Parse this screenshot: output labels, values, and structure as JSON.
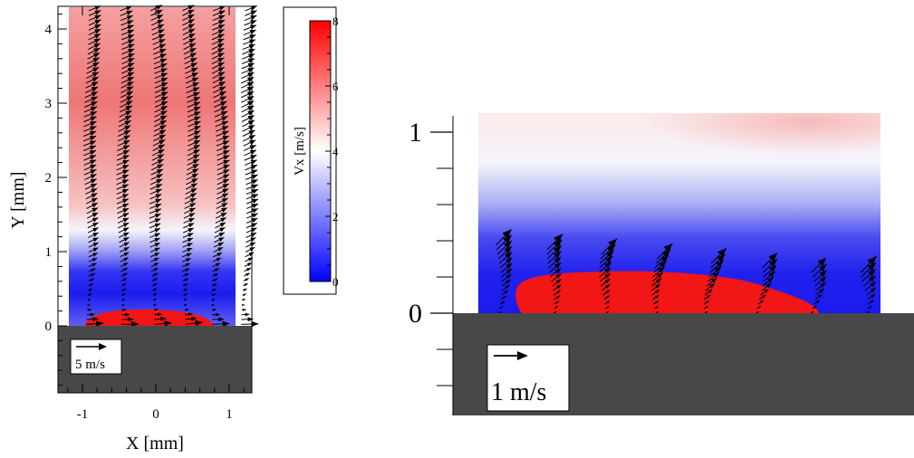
{
  "chart_data": [
    {
      "type": "heatmap",
      "panel": "left",
      "xlabel": "X [mm]",
      "ylabel": "Y [mm]",
      "xlim": [
        -1.3,
        1.3
      ],
      "ylim": [
        -0.9,
        4.3
      ],
      "xticks": [
        -1,
        0,
        1
      ],
      "xtick_labels": [
        "-1",
        "0",
        "1"
      ],
      "yticks": [
        0,
        1,
        2,
        3,
        4
      ],
      "ytick_labels": [
        "0",
        "1",
        "2",
        "3",
        "4"
      ],
      "colorbar": {
        "label": "Vx [m/s]",
        "min": 0,
        "max": 8,
        "ticks": [
          0,
          2,
          4,
          6,
          8
        ],
        "tick_labels": [
          "0",
          "2",
          "4",
          "6",
          "8"
        ],
        "colors": [
          "#0000ff",
          "#ffffff",
          "#ff0000"
        ]
      },
      "reference_vector_label": "5 m/s",
      "vector_columns_x": [
        -0.95,
        -0.5,
        -0.05,
        0.4,
        0.8,
        1.2
      ],
      "vx_profile": {
        "y": [
          0,
          0.1,
          0.25,
          0.5,
          0.8,
          1.0,
          1.5,
          2.0,
          3.0,
          4.0,
          4.25
        ],
        "vx": [
          8,
          4.5,
          1,
          2,
          3.5,
          4.5,
          5.3,
          5.6,
          6.0,
          5.7,
          5.5
        ]
      }
    },
    {
      "type": "heatmap",
      "panel": "right",
      "xlim": [
        0,
        1
      ],
      "ylim": [
        -0.55,
        1.1
      ],
      "yticks": [
        0,
        1
      ],
      "ytick_labels": [
        "0",
        "1"
      ],
      "reference_vector_label": "1 m/s",
      "vector_columns_x": [
        0.05,
        0.18,
        0.31,
        0.44,
        0.57,
        0.7,
        0.83,
        0.96
      ],
      "vx_profile": {
        "y": [
          0,
          0.08,
          0.18,
          0.3,
          0.5,
          0.7,
          0.9,
          1.1
        ],
        "vx": [
          8,
          7.5,
          1.5,
          1,
          2.5,
          3.5,
          4.2,
          4.6
        ]
      }
    }
  ]
}
